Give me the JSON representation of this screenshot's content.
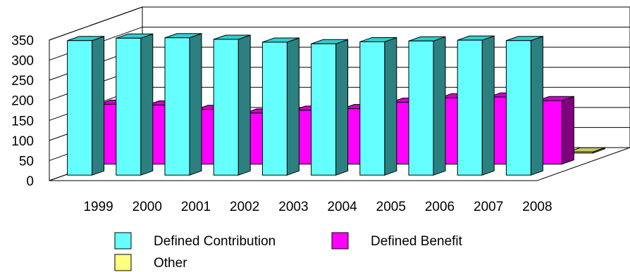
{
  "chart_data": {
    "type": "bar",
    "categories": [
      "1999",
      "2000",
      "2001",
      "2002",
      "2003",
      "2004",
      "2005",
      "2006",
      "2007",
      "2008"
    ],
    "series": [
      {
        "name": "Defined Contribution",
        "values": [
          335,
          341,
          342,
          338,
          331,
          327,
          332,
          334,
          336,
          335
        ],
        "color_front": "#66ffff",
        "color_top": "#33cccc",
        "color_side": "#2d8080"
      },
      {
        "name": "Defined Benefit",
        "values": [
          149,
          147,
          136,
          127,
          134,
          138,
          154,
          165,
          167,
          158
        ],
        "color_front": "#ff00ff",
        "color_top": "#cc00cc",
        "color_side": "#800080"
      },
      {
        "name": "Other",
        "values": [
          1,
          1,
          1,
          1,
          1,
          1,
          1,
          1,
          1,
          3
        ],
        "color_front": "#ffff80",
        "color_top": "#c8c864",
        "color_side": "#808040"
      }
    ],
    "y_ticks": [
      "0",
      "50",
      "100",
      "150",
      "200",
      "250",
      "300",
      "350"
    ],
    "ylim": [
      0,
      350
    ],
    "grid": true,
    "three_d": true,
    "legend_position": "bottom"
  }
}
